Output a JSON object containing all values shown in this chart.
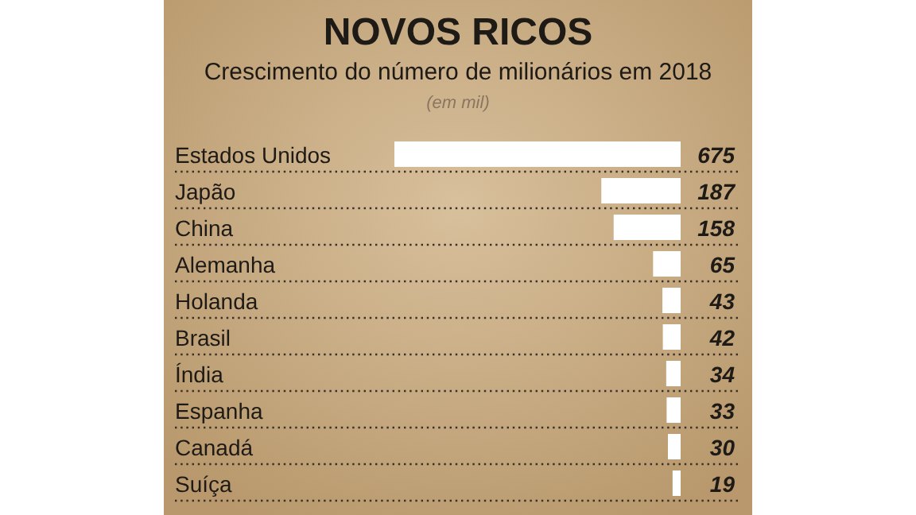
{
  "chart_data": {
    "type": "bar",
    "orientation": "horizontal",
    "title": "NOVOS RICOS",
    "subtitle": "Crescimento do número de milionários em 2018",
    "annotations": [
      "(em mil)"
    ],
    "categories": [
      "Estados Unidos",
      "Japão",
      "China",
      "Alemanha",
      "Holanda",
      "Brasil",
      "Índia",
      "Espanha",
      "Canadá",
      "Suíça"
    ],
    "values": [
      675,
      187,
      158,
      65,
      43,
      42,
      34,
      33,
      30,
      19
    ],
    "color": "#ffffff",
    "data_labels": true,
    "grid": true
  }
}
